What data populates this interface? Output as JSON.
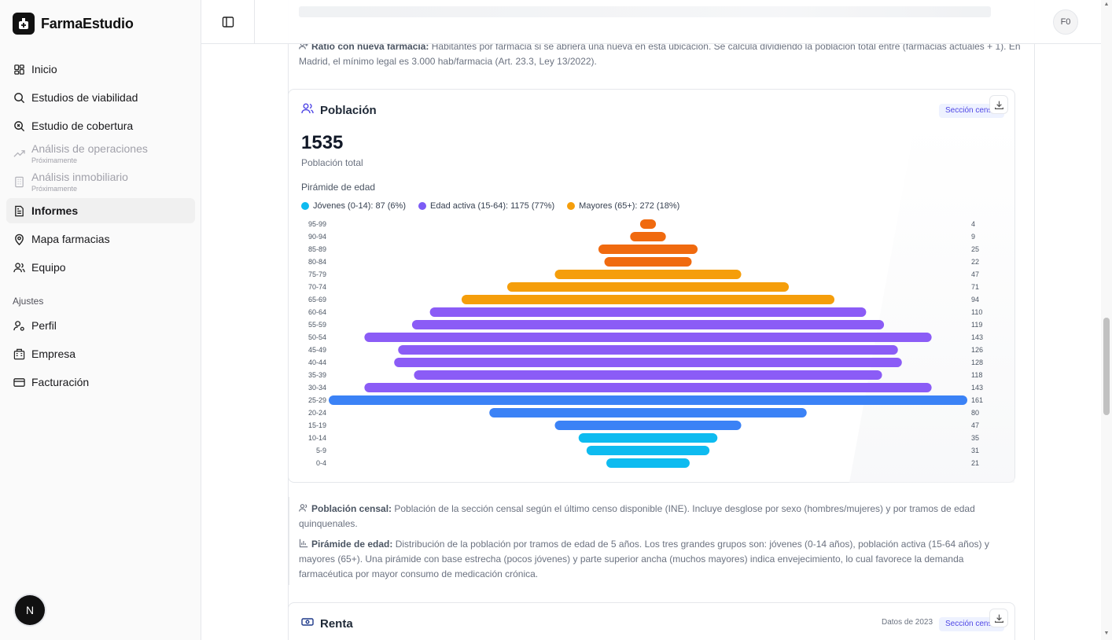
{
  "app": {
    "name": "FarmaEstudio"
  },
  "sidebar": {
    "items": [
      {
        "label": "Inicio",
        "icon": "dashboard-icon"
      },
      {
        "label": "Estudios de viabilidad",
        "icon": "search-icon"
      },
      {
        "label": "Estudio de cobertura",
        "icon": "search-coverage-icon"
      },
      {
        "label": "Análisis de operaciones",
        "sub": "Próximamente",
        "icon": "trending-up-icon"
      },
      {
        "label": "Análisis inmobiliario",
        "sub": "Próximamente",
        "icon": "building-icon"
      },
      {
        "label": "Informes",
        "icon": "file-text-icon"
      },
      {
        "label": "Mapa farmacias",
        "icon": "map-pin-icon"
      },
      {
        "label": "Equipo",
        "icon": "users-icon"
      }
    ],
    "section_label": "Ajustes",
    "settings": [
      {
        "label": "Perfil",
        "icon": "user-key-icon"
      },
      {
        "label": "Empresa",
        "icon": "company-icon"
      },
      {
        "label": "Facturación",
        "icon": "credit-card-icon"
      }
    ],
    "bottom_badge": "N"
  },
  "topbar": {
    "avatar": "F0"
  },
  "notes": {
    "ratio_title": "Ratio con nueva farmacia:",
    "ratio_text": "Habitantes por farmacia si se abriera una nueva en esta ubicación. Se calcula dividiendo la población total entre (farmacias actuales + 1). En Madrid, el mínimo legal es 3.000 hab/farmacia (Art. 23.3, Ley 13/2022).",
    "censal_title": "Población censal:",
    "censal_text": "Población de la sección censal según el último censo disponible (INE). Incluye desglose por sexo (hombres/mujeres) y por tramos de edad quinquenales.",
    "piramide_title": "Pirámide de edad:",
    "piramide_text": "Distribución de la población por tramos de edad de 5 años. Los tres grandes grupos son: jóvenes (0-14 años), población activa (15-64 años) y mayores (65+). Una pirámide con base estrecha (pocos jóvenes) y parte superior ancha (muchos mayores) indica envejecimiento, lo cual favorece la demanda farmacéutica por mayor consumo de medicación crónica."
  },
  "poblacion_card": {
    "title": "Población",
    "badge": "Sección censal",
    "total": "1535",
    "total_label": "Población total",
    "pyramid_title": "Pirámide de edad",
    "legend": [
      {
        "label": "Jóvenes (0-14): 87 (6%)",
        "color": "#0ebbf0"
      },
      {
        "label": "Edad activa (15-64): 1175 (77%)",
        "color": "#7c5cf5"
      },
      {
        "label": "Mayores (65+): 272 (18%)",
        "color": "#f59e0b"
      }
    ]
  },
  "renta_card": {
    "title": "Renta",
    "year_label": "Datos de 2023",
    "badge": "Sección censal"
  },
  "chart_data": {
    "type": "bar",
    "orientation": "horizontal-centered",
    "categories": [
      "95-99",
      "90-94",
      "85-89",
      "80-84",
      "75-79",
      "70-74",
      "65-69",
      "60-64",
      "55-59",
      "50-54",
      "45-49",
      "40-44",
      "35-39",
      "30-34",
      "25-29",
      "20-24",
      "15-19",
      "10-14",
      "5-9",
      "0-4"
    ],
    "values": [
      4,
      9,
      25,
      22,
      47,
      71,
      94,
      110,
      119,
      143,
      126,
      128,
      118,
      143,
      161,
      80,
      47,
      35,
      31,
      21
    ],
    "colors": [
      "#f06a0f",
      "#f06a0f",
      "#f06a0f",
      "#f06a0f",
      "#f59e0b",
      "#f59e0b",
      "#f59e0b",
      "#8b5cf6",
      "#8b5cf6",
      "#8b5cf6",
      "#8b5cf6",
      "#8b5cf6",
      "#8b5cf6",
      "#8b5cf6",
      "#3b82f6",
      "#3b82f6",
      "#3b82f6",
      "#0ebbf0",
      "#0ebbf0",
      "#0ebbf0"
    ],
    "title": "Pirámide de edad",
    "xlabel": "",
    "ylabel": "",
    "xlim": [
      0,
      161
    ]
  }
}
